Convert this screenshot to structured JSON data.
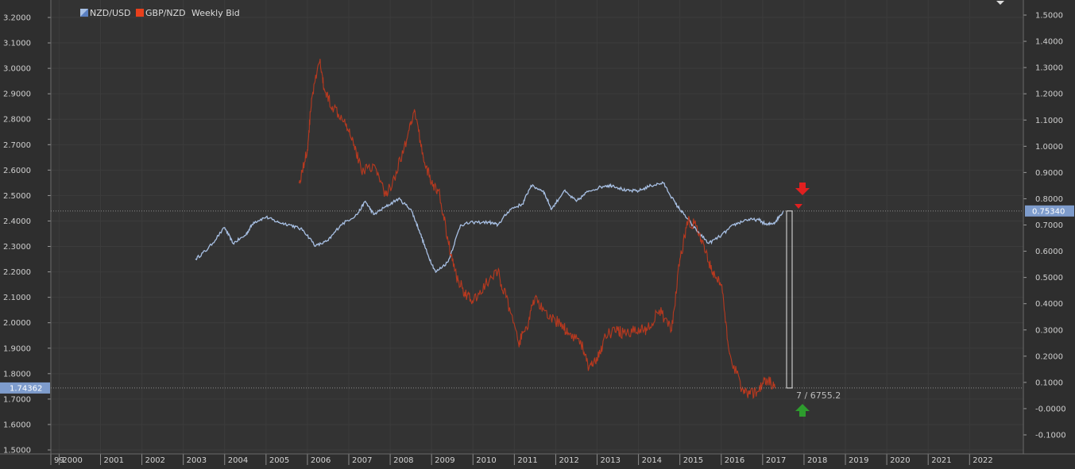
{
  "legend": {
    "series1": "NZD/USD",
    "series2": "GBP/NZD",
    "label": "Weekly Bid"
  },
  "colors": {
    "background": "#2e2e2e",
    "plot_background": "#333333",
    "grid": "#3c3c3c",
    "nzdusd": "#a8c0e4",
    "gbpnzd": "#b8391f",
    "price_tag": "#7e9ccc",
    "arrow_down": "#e02020",
    "arrow_up": "#2d9c2d"
  },
  "markers": {
    "cursor_readout": "7 / 6755.2",
    "left_price_tag": "1.74362",
    "right_price_tag": "0.75340"
  },
  "chart_data": {
    "type": "line",
    "x_ticks": [
      "99",
      "2000",
      "2001",
      "2002",
      "2003",
      "2004",
      "2005",
      "2006",
      "2007",
      "2008",
      "2009",
      "2010",
      "2011",
      "2012",
      "2013",
      "2014",
      "2015",
      "2016",
      "2017",
      "2018",
      "2019",
      "2020",
      "2021",
      "2022"
    ],
    "x_range": [
      1999.8,
      2023.3
    ],
    "left_axis": {
      "ticks": [
        "3.2000",
        "3.1000",
        "3.0000",
        "2.9000",
        "2.8000",
        "2.7000",
        "2.6000",
        "2.5000",
        "2.4000",
        "2.3000",
        "2.2000",
        "2.1000",
        "2.0000",
        "1.9000",
        "1.8000",
        "1.7000",
        "1.6000",
        "1.5000"
      ],
      "range": [
        1.5,
        3.2
      ]
    },
    "right_axis": {
      "ticks": [
        "1.5000",
        "1.4000",
        "1.3000",
        "1.2000",
        "1.1000",
        "1.0000",
        "0.9000",
        "0.8000",
        "0.7000",
        "0.6000",
        "0.5000",
        "0.4000",
        "0.3000",
        "0.2000",
        "0.1000",
        "-0.0000",
        "-0.1000"
      ],
      "range": [
        -0.1,
        1.5
      ]
    },
    "series": [
      {
        "name": "NZD/USD",
        "axis": "right",
        "x": [
          2003.3,
          2003.6,
          2004.0,
          2004.2,
          2004.5,
          2004.7,
          2005.0,
          2005.3,
          2005.6,
          2005.9,
          2006.2,
          2006.5,
          2006.8,
          2007.2,
          2007.4,
          2007.6,
          2007.9,
          2008.2,
          2008.5,
          2008.7,
          2008.9,
          2009.1,
          2009.4,
          2009.7,
          2010.0,
          2010.4,
          2010.6,
          2010.9,
          2011.2,
          2011.4,
          2011.7,
          2011.9,
          2012.2,
          2012.5,
          2012.8,
          2013.2,
          2013.4,
          2013.7,
          2014.0,
          2014.3,
          2014.6,
          2014.9,
          2015.1,
          2015.4,
          2015.7,
          2016.0,
          2016.3,
          2016.6,
          2016.9,
          2017.1,
          2017.3,
          2017.5
        ],
        "values": [
          0.57,
          0.61,
          0.69,
          0.63,
          0.66,
          0.71,
          0.73,
          0.71,
          0.7,
          0.68,
          0.62,
          0.64,
          0.7,
          0.74,
          0.79,
          0.74,
          0.77,
          0.8,
          0.76,
          0.68,
          0.59,
          0.52,
          0.56,
          0.7,
          0.71,
          0.71,
          0.7,
          0.76,
          0.78,
          0.85,
          0.83,
          0.76,
          0.83,
          0.79,
          0.83,
          0.85,
          0.85,
          0.83,
          0.83,
          0.85,
          0.86,
          0.78,
          0.74,
          0.68,
          0.63,
          0.66,
          0.7,
          0.72,
          0.72,
          0.7,
          0.71,
          0.7534
        ]
      },
      {
        "name": "GBP/NZD",
        "axis": "left",
        "x": [
          2005.8,
          2006.0,
          2006.1,
          2006.3,
          2006.4,
          2006.6,
          2006.9,
          2007.1,
          2007.3,
          2007.6,
          2007.9,
          2008.1,
          2008.4,
          2008.6,
          2008.8,
          2009.0,
          2009.2,
          2009.4,
          2009.6,
          2009.8,
          2010.0,
          2010.3,
          2010.6,
          2010.8,
          2011.1,
          2011.3,
          2011.5,
          2011.8,
          2012.1,
          2012.3,
          2012.6,
          2012.8,
          2013.0,
          2013.2,
          2013.5,
          2013.7,
          2014.0,
          2014.2,
          2014.5,
          2014.8,
          2015.0,
          2015.2,
          2015.4,
          2015.6,
          2015.8,
          2016.0,
          2016.2,
          2016.5,
          2016.7,
          2016.9,
          2017.1,
          2017.3
        ],
        "values": [
          2.55,
          2.68,
          2.88,
          3.03,
          2.92,
          2.85,
          2.8,
          2.72,
          2.6,
          2.62,
          2.5,
          2.57,
          2.72,
          2.83,
          2.65,
          2.55,
          2.5,
          2.32,
          2.18,
          2.12,
          2.08,
          2.15,
          2.2,
          2.1,
          1.92,
          1.98,
          2.1,
          2.02,
          2.0,
          1.96,
          1.93,
          1.82,
          1.85,
          1.95,
          1.97,
          1.95,
          1.98,
          1.97,
          2.05,
          1.97,
          2.25,
          2.4,
          2.38,
          2.28,
          2.2,
          2.15,
          1.88,
          1.74,
          1.72,
          1.73,
          1.78,
          1.74362
        ]
      }
    ]
  }
}
